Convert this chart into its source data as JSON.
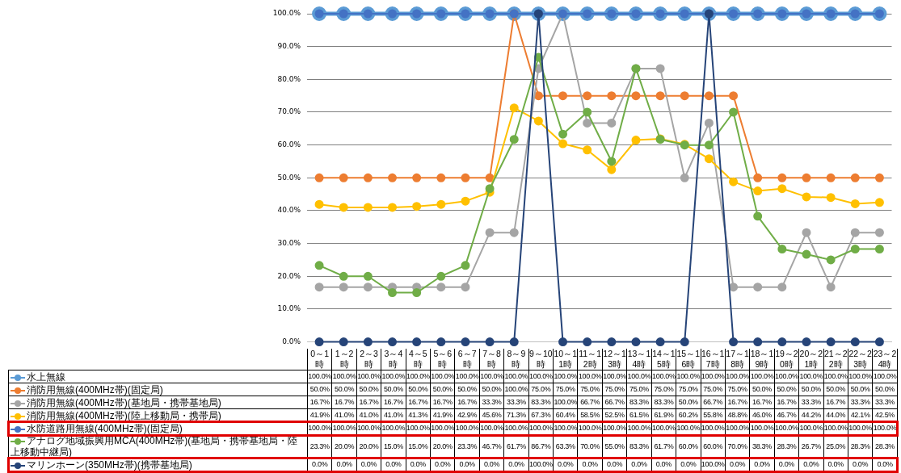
{
  "chart_data": {
    "type": "line",
    "categories": [
      "0～1時",
      "1～2時",
      "2～3時",
      "3～4時",
      "4～5時",
      "5～6時",
      "6～7時",
      "7～8時",
      "8～9時",
      "9～10時",
      "10～11時",
      "11～12時",
      "12～13時",
      "13～14時",
      "14～15時",
      "15～16時",
      "16～17時",
      "17～18時",
      "18～19時",
      "19～20時",
      "20～21時",
      "21～22時",
      "22～23時",
      "23～24時"
    ],
    "ylim": [
      0,
      100
    ],
    "yticks": [
      {
        "value": 0,
        "label": "0.0%"
      },
      {
        "value": 10,
        "label": "10.0%"
      },
      {
        "value": 20,
        "label": "20.0%"
      },
      {
        "value": 30,
        "label": "30.0%"
      },
      {
        "value": 40,
        "label": "40.0%"
      },
      {
        "value": 50,
        "label": "50.0%"
      },
      {
        "value": 60,
        "label": "60.0%"
      },
      {
        "value": 70,
        "label": "70.0%"
      },
      {
        "value": 80,
        "label": "80.0%"
      },
      {
        "value": 90,
        "label": "90.0%"
      },
      {
        "value": 100,
        "label": "100.0%"
      }
    ],
    "grid": "y",
    "legend": "bottom",
    "marker": "circle",
    "line_style": "solid",
    "series": [
      {
        "name": "水上無線",
        "color": "#5b9bd5",
        "values": [
          100,
          100,
          100,
          100,
          100,
          100,
          100,
          100,
          100,
          100,
          100,
          100,
          100,
          100,
          100,
          100,
          100,
          100,
          100,
          100,
          100,
          100,
          100,
          100
        ],
        "value_labels": [
          "100.0%",
          "100.0%",
          "100.0%",
          "100.0%",
          "100.0%",
          "100.0%",
          "100.0%",
          "100.0%",
          "100.0%",
          "100.0%",
          "100.0%",
          "100.0%",
          "100.0%",
          "100.0%",
          "100.0%",
          "100.0%",
          "100.0%",
          "100.0%",
          "100.0%",
          "100.0%",
          "100.0%",
          "100.0%",
          "100.0%",
          "100.0%"
        ]
      },
      {
        "name": "消防用無線(400MHz帯)(固定局)",
        "color": "#ed7d31",
        "values": [
          50,
          50,
          50,
          50,
          50,
          50,
          50,
          50,
          100,
          75,
          75,
          75,
          75,
          75,
          75,
          75,
          75,
          75,
          50,
          50,
          50,
          50,
          50,
          50
        ],
        "value_labels": [
          "50.0%",
          "50.0%",
          "50.0%",
          "50.0%",
          "50.0%",
          "50.0%",
          "50.0%",
          "50.0%",
          "100.0%",
          "75.0%",
          "75.0%",
          "75.0%",
          "75.0%",
          "75.0%",
          "75.0%",
          "75.0%",
          "75.0%",
          "75.0%",
          "50.0%",
          "50.0%",
          "50.0%",
          "50.0%",
          "50.0%",
          "50.0%"
        ]
      },
      {
        "name": "消防用無線(400MHz帯)(基地局・携帯基地局)",
        "color": "#a5a5a5",
        "values": [
          16.7,
          16.7,
          16.7,
          16.7,
          16.7,
          16.7,
          16.7,
          33.3,
          33.3,
          83.3,
          100,
          66.7,
          66.7,
          83.3,
          83.3,
          50,
          66.7,
          16.7,
          16.7,
          16.7,
          33.3,
          16.7,
          33.3,
          33.3
        ],
        "value_labels": [
          "16.7%",
          "16.7%",
          "16.7%",
          "16.7%",
          "16.7%",
          "16.7%",
          "16.7%",
          "33.3%",
          "33.3%",
          "83.3%",
          "100.0%",
          "66.7%",
          "66.7%",
          "83.3%",
          "83.3%",
          "50.0%",
          "66.7%",
          "16.7%",
          "16.7%",
          "16.7%",
          "33.3%",
          "16.7%",
          "33.3%",
          "33.3%"
        ]
      },
      {
        "name": "消防用無線(400MHz帯)(陸上移動局・携帯局)",
        "color": "#ffc000",
        "values": [
          41.9,
          41.0,
          41.0,
          41.0,
          41.3,
          41.9,
          42.9,
          45.6,
          71.3,
          67.3,
          60.4,
          58.5,
          52.5,
          61.5,
          61.9,
          60.2,
          55.8,
          48.8,
          46.0,
          46.7,
          44.2,
          44.0,
          42.1,
          42.5
        ],
        "value_labels": [
          "41.9%",
          "41.0%",
          "41.0%",
          "41.0%",
          "41.3%",
          "41.9%",
          "42.9%",
          "45.6%",
          "71.3%",
          "67.3%",
          "60.4%",
          "58.5%",
          "52.5%",
          "61.5%",
          "61.9%",
          "60.2%",
          "55.8%",
          "48.8%",
          "46.0%",
          "46.7%",
          "44.2%",
          "44.0%",
          "42.1%",
          "42.5%"
        ]
      },
      {
        "name": "水防道路用無線(400MHz帯)(固定局)",
        "color": "#4472c4",
        "values": [
          100,
          100,
          100,
          100,
          100,
          100,
          100,
          100,
          100,
          100,
          100,
          100,
          100,
          100,
          100,
          100,
          100,
          100,
          100,
          100,
          100,
          100,
          100,
          100
        ],
        "value_labels": [
          "100.0%",
          "100.0%",
          "100.0%",
          "100.0%",
          "100.0%",
          "100.0%",
          "100.0%",
          "100.0%",
          "100.0%",
          "100.0%",
          "100.0%",
          "100.0%",
          "100.0%",
          "100.0%",
          "100.0%",
          "100.0%",
          "100.0%",
          "100.0%",
          "100.0%",
          "100.0%",
          "100.0%",
          "100.0%",
          "100.0%",
          "100.0%"
        ]
      },
      {
        "name": "アナログ地域振興用MCA(400MHz帯)(基地局・携帯基地局・陸上移動中継局)",
        "color": "#70ad47",
        "values": [
          23.3,
          20,
          20,
          15,
          15,
          20,
          23.3,
          46.7,
          61.7,
          86.7,
          63.3,
          70,
          55,
          83.3,
          61.7,
          60,
          60,
          70,
          38.3,
          28.3,
          26.7,
          25,
          28.3,
          28.3
        ],
        "value_labels": [
          "23.3%",
          "20.0%",
          "20.0%",
          "15.0%",
          "15.0%",
          "20.0%",
          "23.3%",
          "46.7%",
          "61.7%",
          "86.7%",
          "63.3%",
          "70.0%",
          "55.0%",
          "83.3%",
          "61.7%",
          "60.0%",
          "60.0%",
          "70.0%",
          "38.3%",
          "28.3%",
          "26.7%",
          "25.0%",
          "28.3%",
          "28.3%"
        ]
      },
      {
        "name": "マリンホーン(350MHz帯)(携帯基地局)",
        "color": "#264478",
        "values": [
          0,
          0,
          0,
          0,
          0,
          0,
          0,
          0,
          0,
          100,
          0,
          0,
          0,
          0,
          0,
          0,
          100,
          0,
          0,
          0,
          0,
          0,
          0,
          0
        ],
        "value_labels": [
          "0.0%",
          "0.0%",
          "0.0%",
          "0.0%",
          "0.0%",
          "0.0%",
          "0.0%",
          "0.0%",
          "0.0%",
          "100.0%",
          "0.0%",
          "0.0%",
          "0.0%",
          "0.0%",
          "0.0%",
          "0.0%",
          "100.0%",
          "0.0%",
          "0.0%",
          "0.0%",
          "0.0%",
          "0.0%",
          "0.0%",
          "0.0%"
        ]
      }
    ]
  }
}
